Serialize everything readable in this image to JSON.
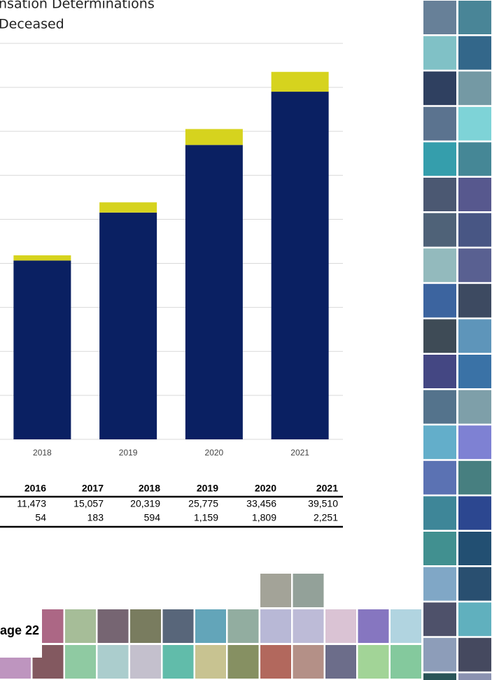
{
  "chart_data": {
    "type": "bar",
    "stacked": true,
    "title": "nsation Determinations",
    "subtitle": "Deceased",
    "categories": [
      "2018",
      "2019",
      "2020",
      "2021"
    ],
    "series": [
      {
        "color": "#0a2062",
        "values": [
          20319,
          25775,
          33456,
          39510
        ]
      },
      {
        "color": "#d6d31e",
        "values": [
          594,
          1159,
          1809,
          2251
        ]
      }
    ],
    "ylim": [
      0,
      45000
    ],
    "yticks": [
      0,
      5000,
      10000,
      15000,
      20000,
      25000,
      30000,
      35000,
      40000,
      45000
    ],
    "grid": true
  },
  "table": {
    "header": [
      "2016",
      "2017",
      "2018",
      "2019",
      "2020",
      "2021"
    ],
    "rows": [
      [
        "11,473",
        "15,057",
        "20,319",
        "25,775",
        "33,456",
        "39,510"
      ],
      [
        "54",
        "183",
        "594",
        "1,159",
        "1,809",
        "2,251"
      ]
    ]
  },
  "page_label": "age 22"
}
